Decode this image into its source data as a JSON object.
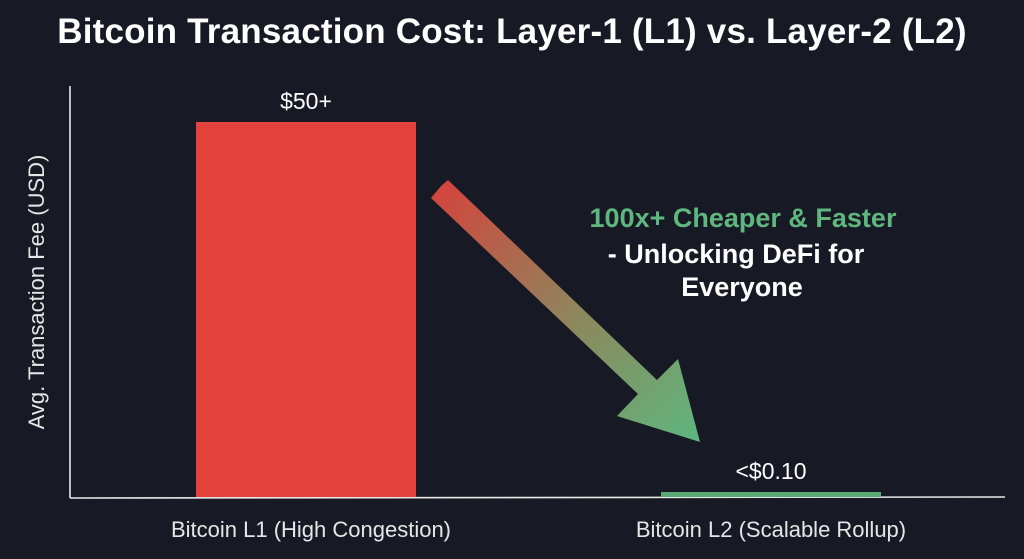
{
  "chart_data": {
    "type": "bar",
    "title": "Bitcoin Transaction Cost: Layer-1 (L1) vs. Layer-2 (L2)",
    "xlabel": "",
    "ylabel": "Avg. Transaction Fee (USD)",
    "categories": [
      "Bitcoin L1 (High Congestion)",
      "Bitcoin L2 (Scalable Rollup)"
    ],
    "values": [
      50,
      0.1
    ],
    "data_labels": [
      "$50+",
      "<$0.10"
    ],
    "ylim": [
      0,
      58
    ],
    "grid": false,
    "bar_colors": [
      "#e2443d",
      "#5aa873"
    ],
    "annotation": {
      "lines": [
        "100x+ Cheaper & Faster",
        "- Unlocking DeFi for",
        "Everyone"
      ],
      "highlight_color": "#5fb67f",
      "text_color": "#ffffff",
      "arrow_start_color": "#d2463e",
      "arrow_end_color": "#5fb67f"
    }
  }
}
